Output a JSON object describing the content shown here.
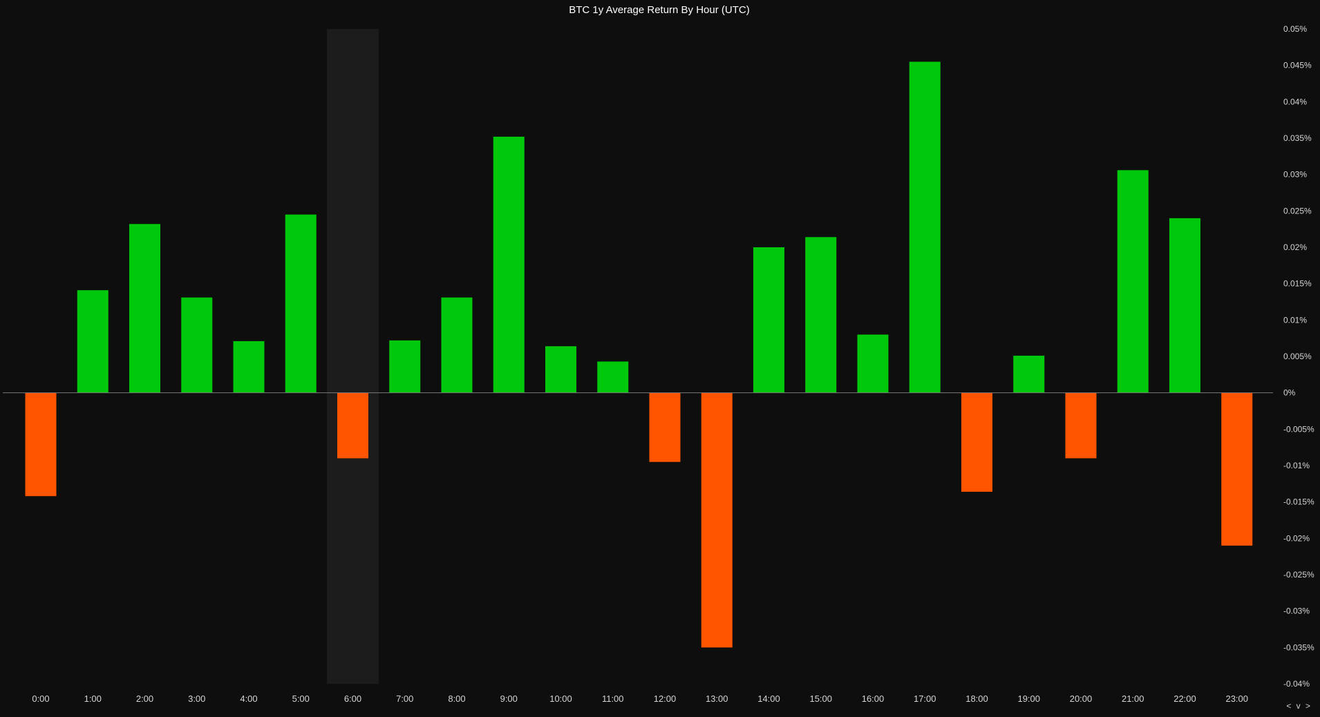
{
  "chart_data": {
    "type": "bar",
    "title": "BTC 1y Average Return By Hour (UTC)",
    "xlabel": "",
    "ylabel": "",
    "unit": "%",
    "categories": [
      "0:00",
      "1:00",
      "2:00",
      "3:00",
      "4:00",
      "5:00",
      "6:00",
      "7:00",
      "8:00",
      "9:00",
      "10:00",
      "11:00",
      "12:00",
      "13:00",
      "14:00",
      "15:00",
      "16:00",
      "17:00",
      "18:00",
      "19:00",
      "20:00",
      "21:00",
      "22:00",
      "23:00"
    ],
    "values": [
      -0.0142,
      0.0141,
      0.0232,
      0.0131,
      0.0071,
      0.0245,
      -0.009,
      0.0072,
      0.0131,
      0.0352,
      0.0064,
      0.0043,
      -0.0095,
      -0.035,
      0.02,
      0.0214,
      0.008,
      0.0455,
      -0.0136,
      0.0051,
      -0.009,
      0.0306,
      0.024,
      -0.021
    ],
    "ylim": [
      -0.04,
      0.05
    ],
    "yticks": [
      0.05,
      0.045,
      0.04,
      0.035,
      0.03,
      0.025,
      0.02,
      0.015,
      0.01,
      0.005,
      0,
      -0.005,
      -0.01,
      -0.015,
      -0.02,
      -0.025,
      -0.03,
      -0.035,
      -0.04
    ],
    "ytick_labels": [
      "0.05%",
      "0.045%",
      "0.04%",
      "0.035%",
      "0.03%",
      "0.025%",
      "0.02%",
      "0.015%",
      "0.01%",
      "0.005%",
      "0%",
      "-0.005%",
      "-0.01%",
      "-0.015%",
      "-0.02%",
      "-0.025%",
      "-0.03%",
      "-0.035%",
      "-0.04%"
    ],
    "y_axis_position": "right",
    "highlighted_category": "6:00",
    "grid": false,
    "legend": "none",
    "colors": {
      "positive": "#00c80a",
      "negative": "#ff5500",
      "background": "#0e0e0e",
      "highlight": "#1c1c1c",
      "zero_line": "#7a7a7a",
      "text": "#d6d6d6"
    }
  },
  "nav": {
    "label": "< v >"
  }
}
